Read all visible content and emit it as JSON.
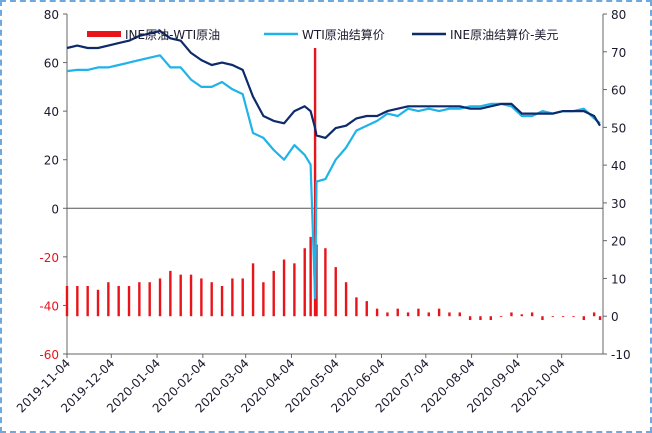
{
  "chart_data": {
    "type": "bar-line",
    "x": [
      "2019-11-04",
      "2019-11-11",
      "2019-11-18",
      "2019-11-25",
      "2019-12-02",
      "2019-12-09",
      "2019-12-16",
      "2019-12-23",
      "2019-12-30",
      "2020-01-06",
      "2020-01-13",
      "2020-01-20",
      "2020-01-27",
      "2020-02-03",
      "2020-02-10",
      "2020-02-17",
      "2020-02-24",
      "2020-03-02",
      "2020-03-09",
      "2020-03-16",
      "2020-03-23",
      "2020-03-30",
      "2020-04-06",
      "2020-04-13",
      "2020-04-17",
      "2020-04-20",
      "2020-04-21",
      "2020-04-27",
      "2020-05-04",
      "2020-05-11",
      "2020-05-18",
      "2020-05-25",
      "2020-06-01",
      "2020-06-08",
      "2020-06-15",
      "2020-06-22",
      "2020-06-29",
      "2020-07-06",
      "2020-07-13",
      "2020-07-20",
      "2020-07-27",
      "2020-08-03",
      "2020-08-10",
      "2020-08-17",
      "2020-08-24",
      "2020-08-31",
      "2020-09-07",
      "2020-09-14",
      "2020-09-21",
      "2020-09-28",
      "2020-10-05",
      "2020-10-12",
      "2020-10-19",
      "2020-10-26",
      "2020-10-30"
    ],
    "series": [
      {
        "name": "INE原油-WTI原油",
        "color": "#e8141a",
        "kind": "bar",
        "axis": "y2",
        "values": [
          8,
          8,
          8,
          7,
          9,
          8,
          8,
          9,
          9,
          10,
          12,
          11,
          11,
          10,
          9,
          8,
          10,
          10,
          14,
          9,
          12,
          15,
          14,
          18,
          21,
          71,
          19,
          18,
          13,
          9,
          5,
          4,
          2,
          1,
          2,
          1,
          2,
          1,
          2,
          1,
          1,
          -1,
          -1,
          -1,
          0,
          1,
          0.5,
          1,
          -1,
          0,
          0,
          0,
          -1,
          1,
          -1
        ]
      },
      {
        "name": "WTI原油结算价",
        "color": "#1fb3e8",
        "kind": "line",
        "values": [
          56.5,
          57,
          57,
          58,
          58,
          59,
          60,
          61,
          62,
          63,
          58,
          58,
          53,
          50,
          50,
          52,
          49,
          47,
          31,
          29,
          24,
          20,
          26,
          22,
          18,
          -37,
          11,
          12,
          20,
          25,
          32,
          34,
          36,
          39,
          38,
          41,
          40,
          41,
          40,
          41,
          41,
          42,
          42,
          43,
          43,
          42,
          38,
          38,
          40,
          39,
          40,
          40,
          41,
          37,
          35
        ]
      },
      {
        "name": "INE原油结算价-美元",
        "color": "#0d2a6b",
        "kind": "line",
        "values": [
          66,
          67,
          66,
          66,
          67,
          68,
          69,
          71,
          72,
          73,
          70,
          69,
          64,
          61,
          59,
          60,
          59,
          57,
          46,
          38,
          36,
          35,
          40,
          42,
          40,
          33,
          30,
          29,
          33,
          34,
          37,
          38,
          38,
          40,
          41,
          42,
          42,
          42,
          42,
          42,
          42,
          41,
          41,
          42,
          43,
          43,
          39,
          39,
          39,
          39,
          40,
          40,
          40,
          38,
          34
        ]
      }
    ],
    "xlim": [
      "2019-11-04",
      "2020-11-01"
    ],
    "xticks": [
      "2019-11-04",
      "2019-12-04",
      "2020-01-04",
      "2020-02-04",
      "2020-03-04",
      "2020-04-04",
      "2020-05-04",
      "2020-06-04",
      "2020-07-04",
      "2020-08-04",
      "2020-09-04",
      "2020-10-04"
    ],
    "ylim": [
      -60,
      80
    ],
    "yticks": [
      -60,
      -40,
      -20,
      0,
      20,
      40,
      60,
      80
    ],
    "y2lim": [
      -10,
      80
    ],
    "y2ticks": [
      -10,
      0,
      10,
      20,
      30,
      40,
      50,
      60,
      70,
      80
    ],
    "negative_tick_color": "#e8141a",
    "legend": "top"
  }
}
